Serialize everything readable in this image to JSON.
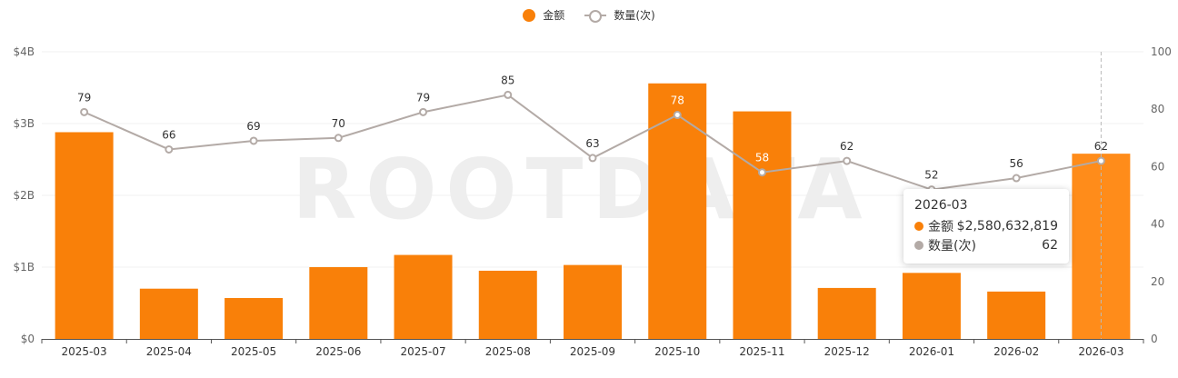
{
  "legend": {
    "amount_label": "金额",
    "count_label": "数量(次)"
  },
  "colors": {
    "bar": "#f98009",
    "bar_highlight": "#ff8c1a",
    "line": "#b3aaa6",
    "grid": "#f0f0f0",
    "axis_text": "#666666"
  },
  "watermark": "ROOTDATA",
  "chart_data": {
    "type": "bar",
    "categories": [
      "2025-03",
      "2025-04",
      "2025-05",
      "2025-06",
      "2025-07",
      "2025-08",
      "2025-09",
      "2025-10",
      "2025-11",
      "2025-12",
      "2026-01",
      "2026-02",
      "2026-03"
    ],
    "series": [
      {
        "name": "金额",
        "type": "bar",
        "axis": "left",
        "values": [
          2.88,
          0.7,
          0.57,
          1.0,
          1.17,
          0.95,
          1.03,
          3.56,
          3.17,
          0.71,
          0.92,
          0.66,
          2.580632819
        ]
      },
      {
        "name": "数量(次)",
        "type": "line",
        "axis": "right",
        "values": [
          79,
          66,
          69,
          70,
          79,
          85,
          63,
          78,
          58,
          62,
          52,
          56,
          62
        ]
      }
    ],
    "left_axis": {
      "unit": "billion USD",
      "ylim": [
        0,
        4
      ],
      "ticks": [
        "$0",
        "$1B",
        "$2B",
        "$3B",
        "$4B"
      ]
    },
    "right_axis": {
      "ylim": [
        0,
        100
      ],
      "ticks": [
        "0",
        "20",
        "40",
        "60",
        "80",
        "100"
      ]
    },
    "grid": true,
    "legend_position": "top-center",
    "highlighted_index": 12
  },
  "tooltip": {
    "title": "2026-03",
    "amount_label": "金额",
    "amount_value": "$2,580,632,819",
    "count_label": "数量(次)",
    "count_value": "62"
  }
}
